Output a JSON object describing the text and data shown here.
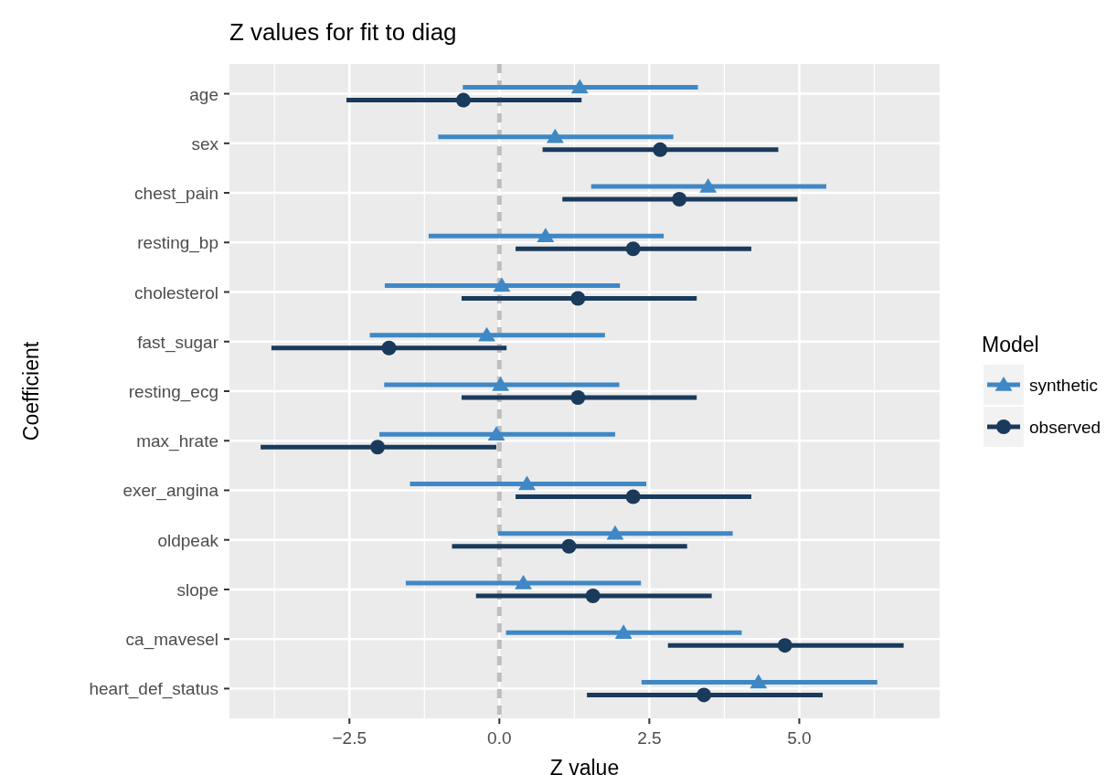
{
  "chart_data": {
    "type": "scatter",
    "orientation": "horizontal",
    "title": "Z values for fit to diag",
    "xlabel": "Z value",
    "ylabel": "Coefficient",
    "legend_title": "Model",
    "legend": "right",
    "grid": true,
    "categories": [
      "age",
      "sex",
      "chest_pain",
      "resting_bp",
      "cholesterol",
      "fast_sugar",
      "resting_ecg",
      "max_hrate",
      "exer_angina",
      "oldpeak",
      "slope",
      "ca_mavesel",
      "heart_def_status"
    ],
    "xlim": [
      -4.5,
      7.34
    ],
    "xticks": [
      {
        "value": -2.5,
        "label": "−2.5"
      },
      {
        "value": 0,
        "label": "0.0"
      },
      {
        "value": 2.5,
        "label": "2.5"
      },
      {
        "value": 5,
        "label": "5.0"
      }
    ],
    "ref_lines": [
      {
        "axis": "x",
        "value": 0,
        "color": "#bebebe",
        "line_style": "dashed"
      }
    ],
    "series": [
      {
        "name": "synthetic",
        "color": "#3f88c5",
        "marker": "triangle",
        "values": [
          1.34,
          0.93,
          3.48,
          0.77,
          0.04,
          -0.21,
          0.02,
          -0.05,
          0.46,
          1.93,
          0.4,
          2.07,
          4.32
        ],
        "errors": [
          [
            -0.61,
            3.31
          ],
          [
            -1.02,
            2.9
          ],
          [
            1.53,
            5.45
          ],
          [
            -1.18,
            2.74
          ],
          [
            -1.91,
            2.01
          ],
          [
            -2.16,
            1.76
          ],
          [
            -1.92,
            2.0
          ],
          [
            -2.0,
            1.93
          ],
          [
            -1.49,
            2.45
          ],
          [
            -0.02,
            3.89
          ],
          [
            -1.56,
            2.36
          ],
          [
            0.11,
            4.04
          ],
          [
            2.37,
            6.3
          ]
        ]
      },
      {
        "name": "observed",
        "color": "#1a3a5c",
        "marker": "circle",
        "values": [
          -0.6,
          2.68,
          3.0,
          2.23,
          1.31,
          -1.84,
          1.31,
          -2.03,
          2.23,
          1.16,
          1.56,
          4.76,
          3.41
        ],
        "errors": [
          [
            -2.55,
            1.37
          ],
          [
            0.72,
            4.65
          ],
          [
            1.05,
            4.97
          ],
          [
            0.27,
            4.2
          ],
          [
            -0.63,
            3.29
          ],
          [
            -3.8,
            0.12
          ],
          [
            -0.63,
            3.29
          ],
          [
            -3.98,
            -0.05
          ],
          [
            0.27,
            4.2
          ],
          [
            -0.79,
            3.13
          ],
          [
            -0.39,
            3.54
          ],
          [
            2.81,
            6.74
          ],
          [
            1.46,
            5.39
          ]
        ]
      }
    ]
  }
}
